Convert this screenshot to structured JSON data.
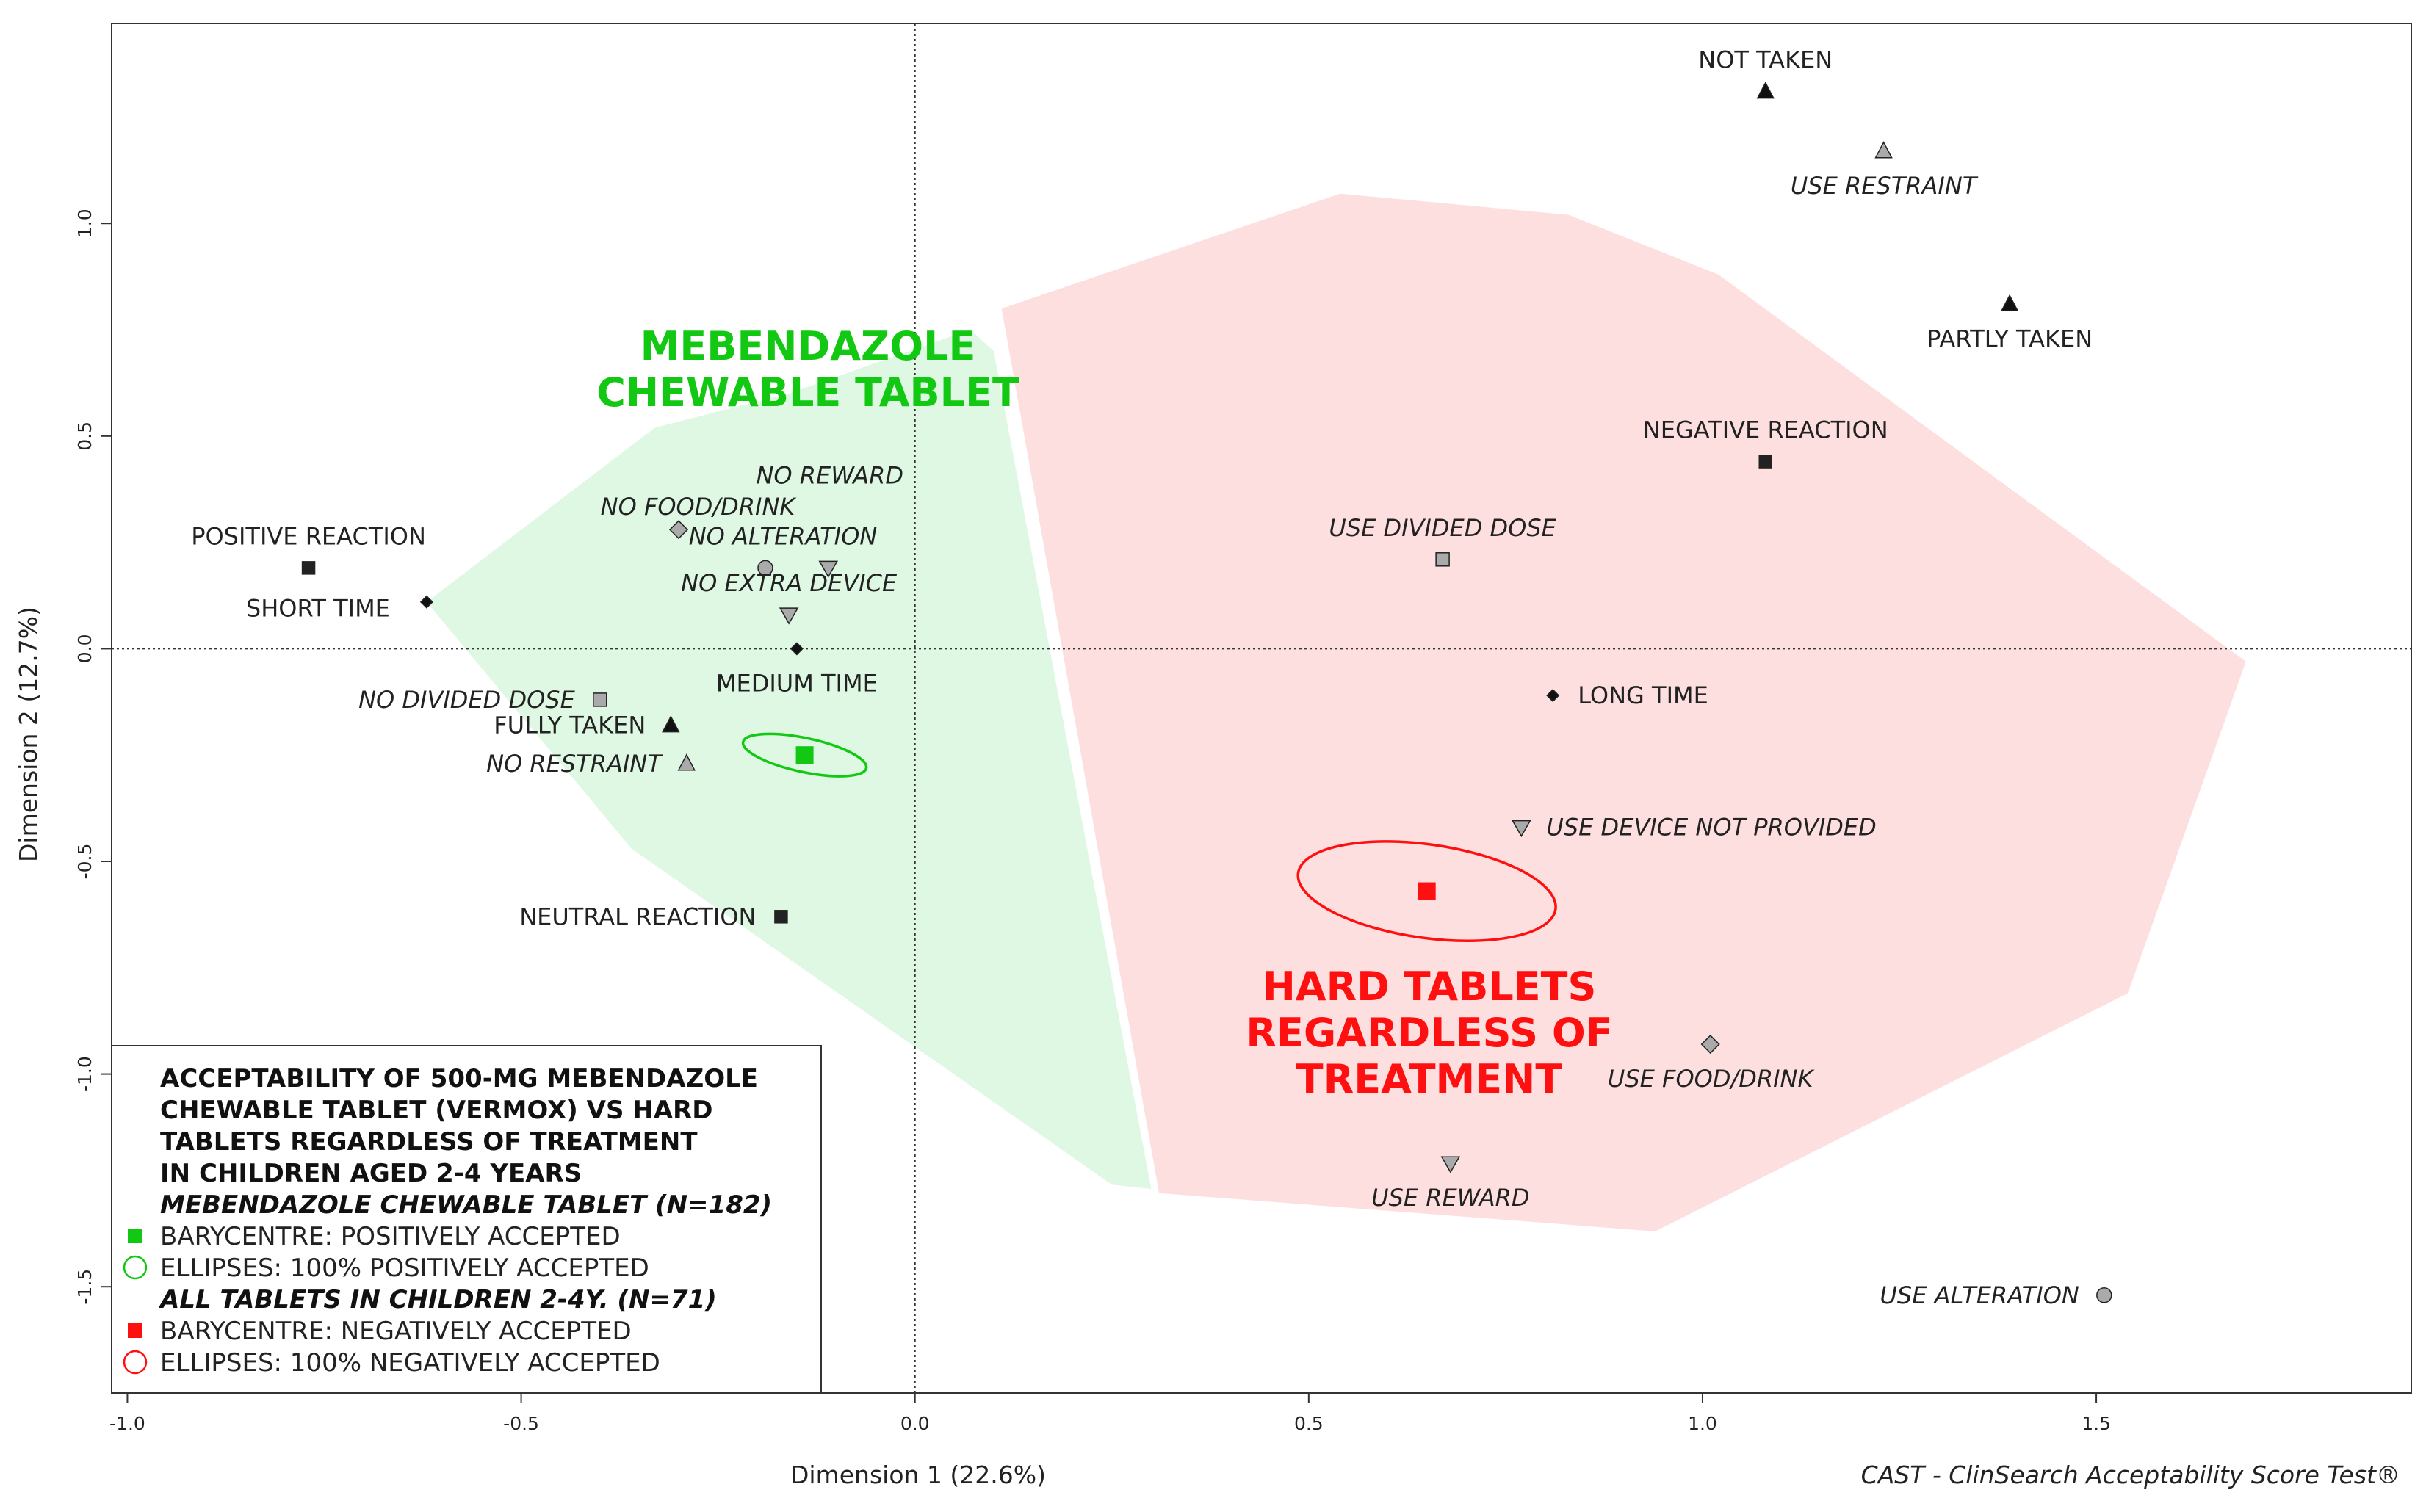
{
  "chart_data": {
    "type": "scatter",
    "subtype": "multiple correspondence analysis map",
    "xlabel": "Dimension 1 (22.6%)",
    "ylabel": "Dimension 2 (12.7%)",
    "xlim": [
      -1.02,
      1.9
    ],
    "ylim": [
      -1.75,
      1.47
    ],
    "xticks": [
      -1.0,
      -0.5,
      0.0,
      0.5,
      1.0,
      1.5
    ],
    "xtick_labels": [
      "-1.0",
      "-0.5",
      "0.0",
      "0.5",
      "1.0",
      "1.5"
    ],
    "yticks": [
      -1.5,
      -1.0,
      -0.5,
      0.0,
      0.5,
      1.0
    ],
    "ytick_labels": [
      "-1.5",
      "-1.0",
      "-0.5",
      "0.0",
      "0.5",
      "1.0"
    ],
    "reference_lines": {
      "x": 0,
      "y": 0
    },
    "footer": "CAST - ClinSearch Acceptability Score Test®",
    "points": [
      {
        "label": "NOT TAKEN",
        "x": 1.08,
        "y": 1.31,
        "shape": "triangle",
        "fill": "#111111",
        "italic": false,
        "label_pos": "above"
      },
      {
        "label": "PARTLY TAKEN",
        "x": 1.39,
        "y": 0.81,
        "shape": "triangle",
        "fill": "#111111",
        "italic": false,
        "label_pos": "below"
      },
      {
        "label": "FULLY TAKEN",
        "x": -0.31,
        "y": -0.18,
        "shape": "triangle",
        "fill": "#111111",
        "italic": false,
        "label_pos": "left"
      },
      {
        "label": "USE RESTRAINT",
        "x": 1.23,
        "y": 1.17,
        "shape": "triangle",
        "fill": "#aaaaaa",
        "italic": true,
        "label_pos": "below"
      },
      {
        "label": "NO RESTRAINT",
        "x": -0.29,
        "y": -0.27,
        "shape": "triangle",
        "fill": "#aaaaaa",
        "italic": true,
        "label_pos": "left"
      },
      {
        "label": "NEGATIVE REACTION",
        "x": 1.08,
        "y": 0.44,
        "shape": "square",
        "fill": "#222222",
        "italic": false,
        "label_pos": "above"
      },
      {
        "label": "POSITIVE REACTION",
        "x": -0.77,
        "y": 0.19,
        "shape": "square",
        "fill": "#222222",
        "italic": false,
        "label_pos": "above"
      },
      {
        "label": "NEUTRAL REACTION",
        "x": -0.17,
        "y": -0.63,
        "shape": "square",
        "fill": "#222222",
        "italic": false,
        "label_pos": "left"
      },
      {
        "label": "USE DIVIDED DOSE",
        "x": 0.67,
        "y": 0.21,
        "shape": "square",
        "fill": "#aaaaaa",
        "italic": true,
        "label_pos": "above"
      },
      {
        "label": "NO DIVIDED DOSE",
        "x": -0.4,
        "y": -0.12,
        "shape": "square",
        "fill": "#aaaaaa",
        "italic": true,
        "label_pos": "left"
      },
      {
        "label": "SHORT TIME",
        "x": -0.62,
        "y": 0.11,
        "shape": "diamond",
        "fill": "#111111",
        "italic": false,
        "label_pos": "left"
      },
      {
        "label": "MEDIUM TIME",
        "x": -0.15,
        "y": 0.0,
        "shape": "diamond",
        "fill": "#111111",
        "italic": false,
        "label_pos": "below"
      },
      {
        "label": "LONG TIME",
        "x": 0.81,
        "y": -0.11,
        "shape": "diamond",
        "fill": "#111111",
        "italic": false,
        "label_pos": "right"
      },
      {
        "label": "NO FOOD/DRINK",
        "x": -0.3,
        "y": 0.28,
        "shape": "diamond",
        "fill": "#aaaaaa",
        "italic": true,
        "label_pos": "aboveleft"
      },
      {
        "label": "USE FOOD/DRINK",
        "x": 1.01,
        "y": -0.93,
        "shape": "diamond",
        "fill": "#aaaaaa",
        "italic": true,
        "label_pos": "below"
      },
      {
        "label": "NO REWARD",
        "x": -0.11,
        "y": 0.19,
        "shape": "invtriangle",
        "fill": "#aaaaaa",
        "italic": true,
        "label_pos": "aboveright"
      },
      {
        "label": "USE REWARD",
        "x": 0.68,
        "y": -1.21,
        "shape": "invtriangle",
        "fill": "#aaaaaa",
        "italic": true,
        "label_pos": "below"
      },
      {
        "label": "NO EXTRA DEVICE",
        "x": -0.16,
        "y": 0.08,
        "shape": "invtriangle",
        "fill": "#aaaaaa",
        "italic": true,
        "label_pos": "above"
      },
      {
        "label": "USE DEVICE NOT PROVIDED",
        "x": 0.77,
        "y": -0.42,
        "shape": "invtriangle",
        "fill": "#aaaaaa",
        "italic": true,
        "label_pos": "right"
      },
      {
        "label": "NO ALTERATION",
        "x": -0.19,
        "y": 0.19,
        "shape": "circle",
        "fill": "#aaaaaa",
        "italic": true,
        "label_pos": "aboveright"
      },
      {
        "label": "USE ALTERATION",
        "x": 1.51,
        "y": -1.52,
        "shape": "circle",
        "fill": "#aaaaaa",
        "italic": true,
        "label_pos": "left"
      }
    ],
    "barycentres": [
      {
        "name": "Mebendazole chewable tablet - positively accepted",
        "x": -0.14,
        "y": -0.25,
        "color": "#12c812",
        "ellipse_rx": 0.08,
        "ellipse_ry": 0.04,
        "ellipse_angle": 12
      },
      {
        "name": "Hard tablets - negatively accepted",
        "x": 0.65,
        "y": -0.57,
        "color": "#ff1010",
        "ellipse_rx": 0.165,
        "ellipse_ry": 0.11,
        "ellipse_angle": 8
      }
    ],
    "regions": [
      {
        "name": "MEBENDAZOLE CHEWABLE TABLET",
        "color": "#b6f0c2",
        "opacity": 0.45,
        "polygon": [
          [
            -0.62,
            0.11
          ],
          [
            -0.33,
            0.52
          ],
          [
            -0.16,
            0.6
          ],
          [
            0.07,
            0.75
          ],
          [
            0.1,
            0.7
          ],
          [
            0.3,
            -1.27
          ],
          [
            0.25,
            -1.26
          ],
          [
            -0.36,
            -0.47
          ]
        ]
      },
      {
        "name": "HARD TABLETS REGARDLESS OF TREATMENT",
        "color": "#fcb9b9",
        "opacity": 0.45,
        "polygon": [
          [
            0.11,
            0.8
          ],
          [
            0.54,
            1.07
          ],
          [
            0.83,
            1.02
          ],
          [
            1.02,
            0.88
          ],
          [
            1.69,
            -0.03
          ],
          [
            1.54,
            -0.81
          ],
          [
            0.94,
            -1.37
          ],
          [
            0.31,
            -1.28
          ]
        ]
      }
    ],
    "region_labels": {
      "green": [
        "MEBENDAZOLE",
        "CHEWABLE TABLET"
      ],
      "red": [
        "HARD TABLETS",
        "REGARDLESS OF",
        "TREATMENT"
      ]
    },
    "legend": {
      "placement": "bottom-left",
      "title_lines": [
        "ACCEPTABILITY OF 500-MG MEBENDAZOLE",
        "CHEWABLE TABLET (VERMOX) VS HARD",
        "TABLETS REGARDLESS OF TREATMENT",
        "IN CHILDREN AGED 2-4 YEARS"
      ],
      "group1_title": "MEBENDAZOLE CHEWABLE TABLET (N=182)",
      "group1_items": [
        "BARYCENTRE: POSITIVELY ACCEPTED",
        "ELLIPSES: 100% POSITIVELY ACCEPTED"
      ],
      "group2_title": "ALL TABLETS IN CHILDREN 2-4Y. (N=71)",
      "group2_items": [
        "BARYCENTRE: NEGATIVELY ACCEPTED",
        "ELLIPSES: 100% NEGATIVELY ACCEPTED"
      ],
      "green": "#12c812",
      "red": "#ff1010"
    }
  }
}
